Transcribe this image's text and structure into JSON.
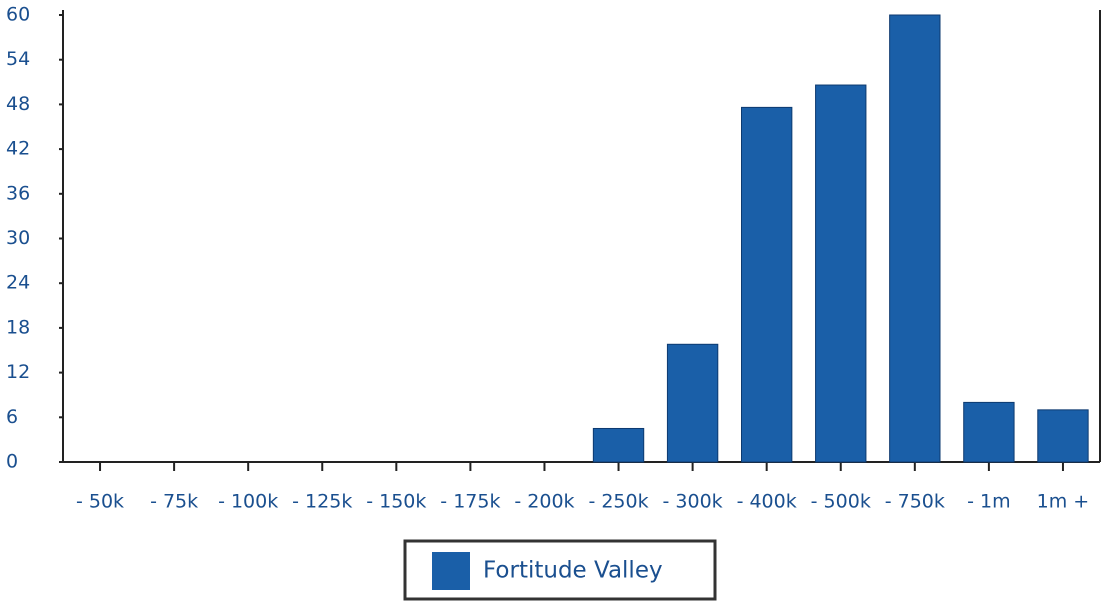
{
  "chart_data": {
    "type": "bar",
    "categories": [
      "- 50k",
      "- 75k",
      "- 100k",
      "- 125k",
      "- 150k",
      "- 175k",
      "- 200k",
      "- 250k",
      "- 300k",
      "- 400k",
      "- 500k",
      "- 750k",
      "- 1m",
      "1m +"
    ],
    "series": [
      {
        "name": "Fortitude Valley",
        "color": "#1a5fa8",
        "values": [
          0,
          0,
          0,
          0,
          0,
          0,
          0,
          4.5,
          15.8,
          47.6,
          50.6,
          60,
          8,
          7
        ]
      }
    ],
    "ylim": [
      0,
      60
    ],
    "yticks": [
      0,
      6,
      12,
      18,
      24,
      30,
      36,
      42,
      48,
      54,
      60
    ],
    "legend": "bottom"
  }
}
